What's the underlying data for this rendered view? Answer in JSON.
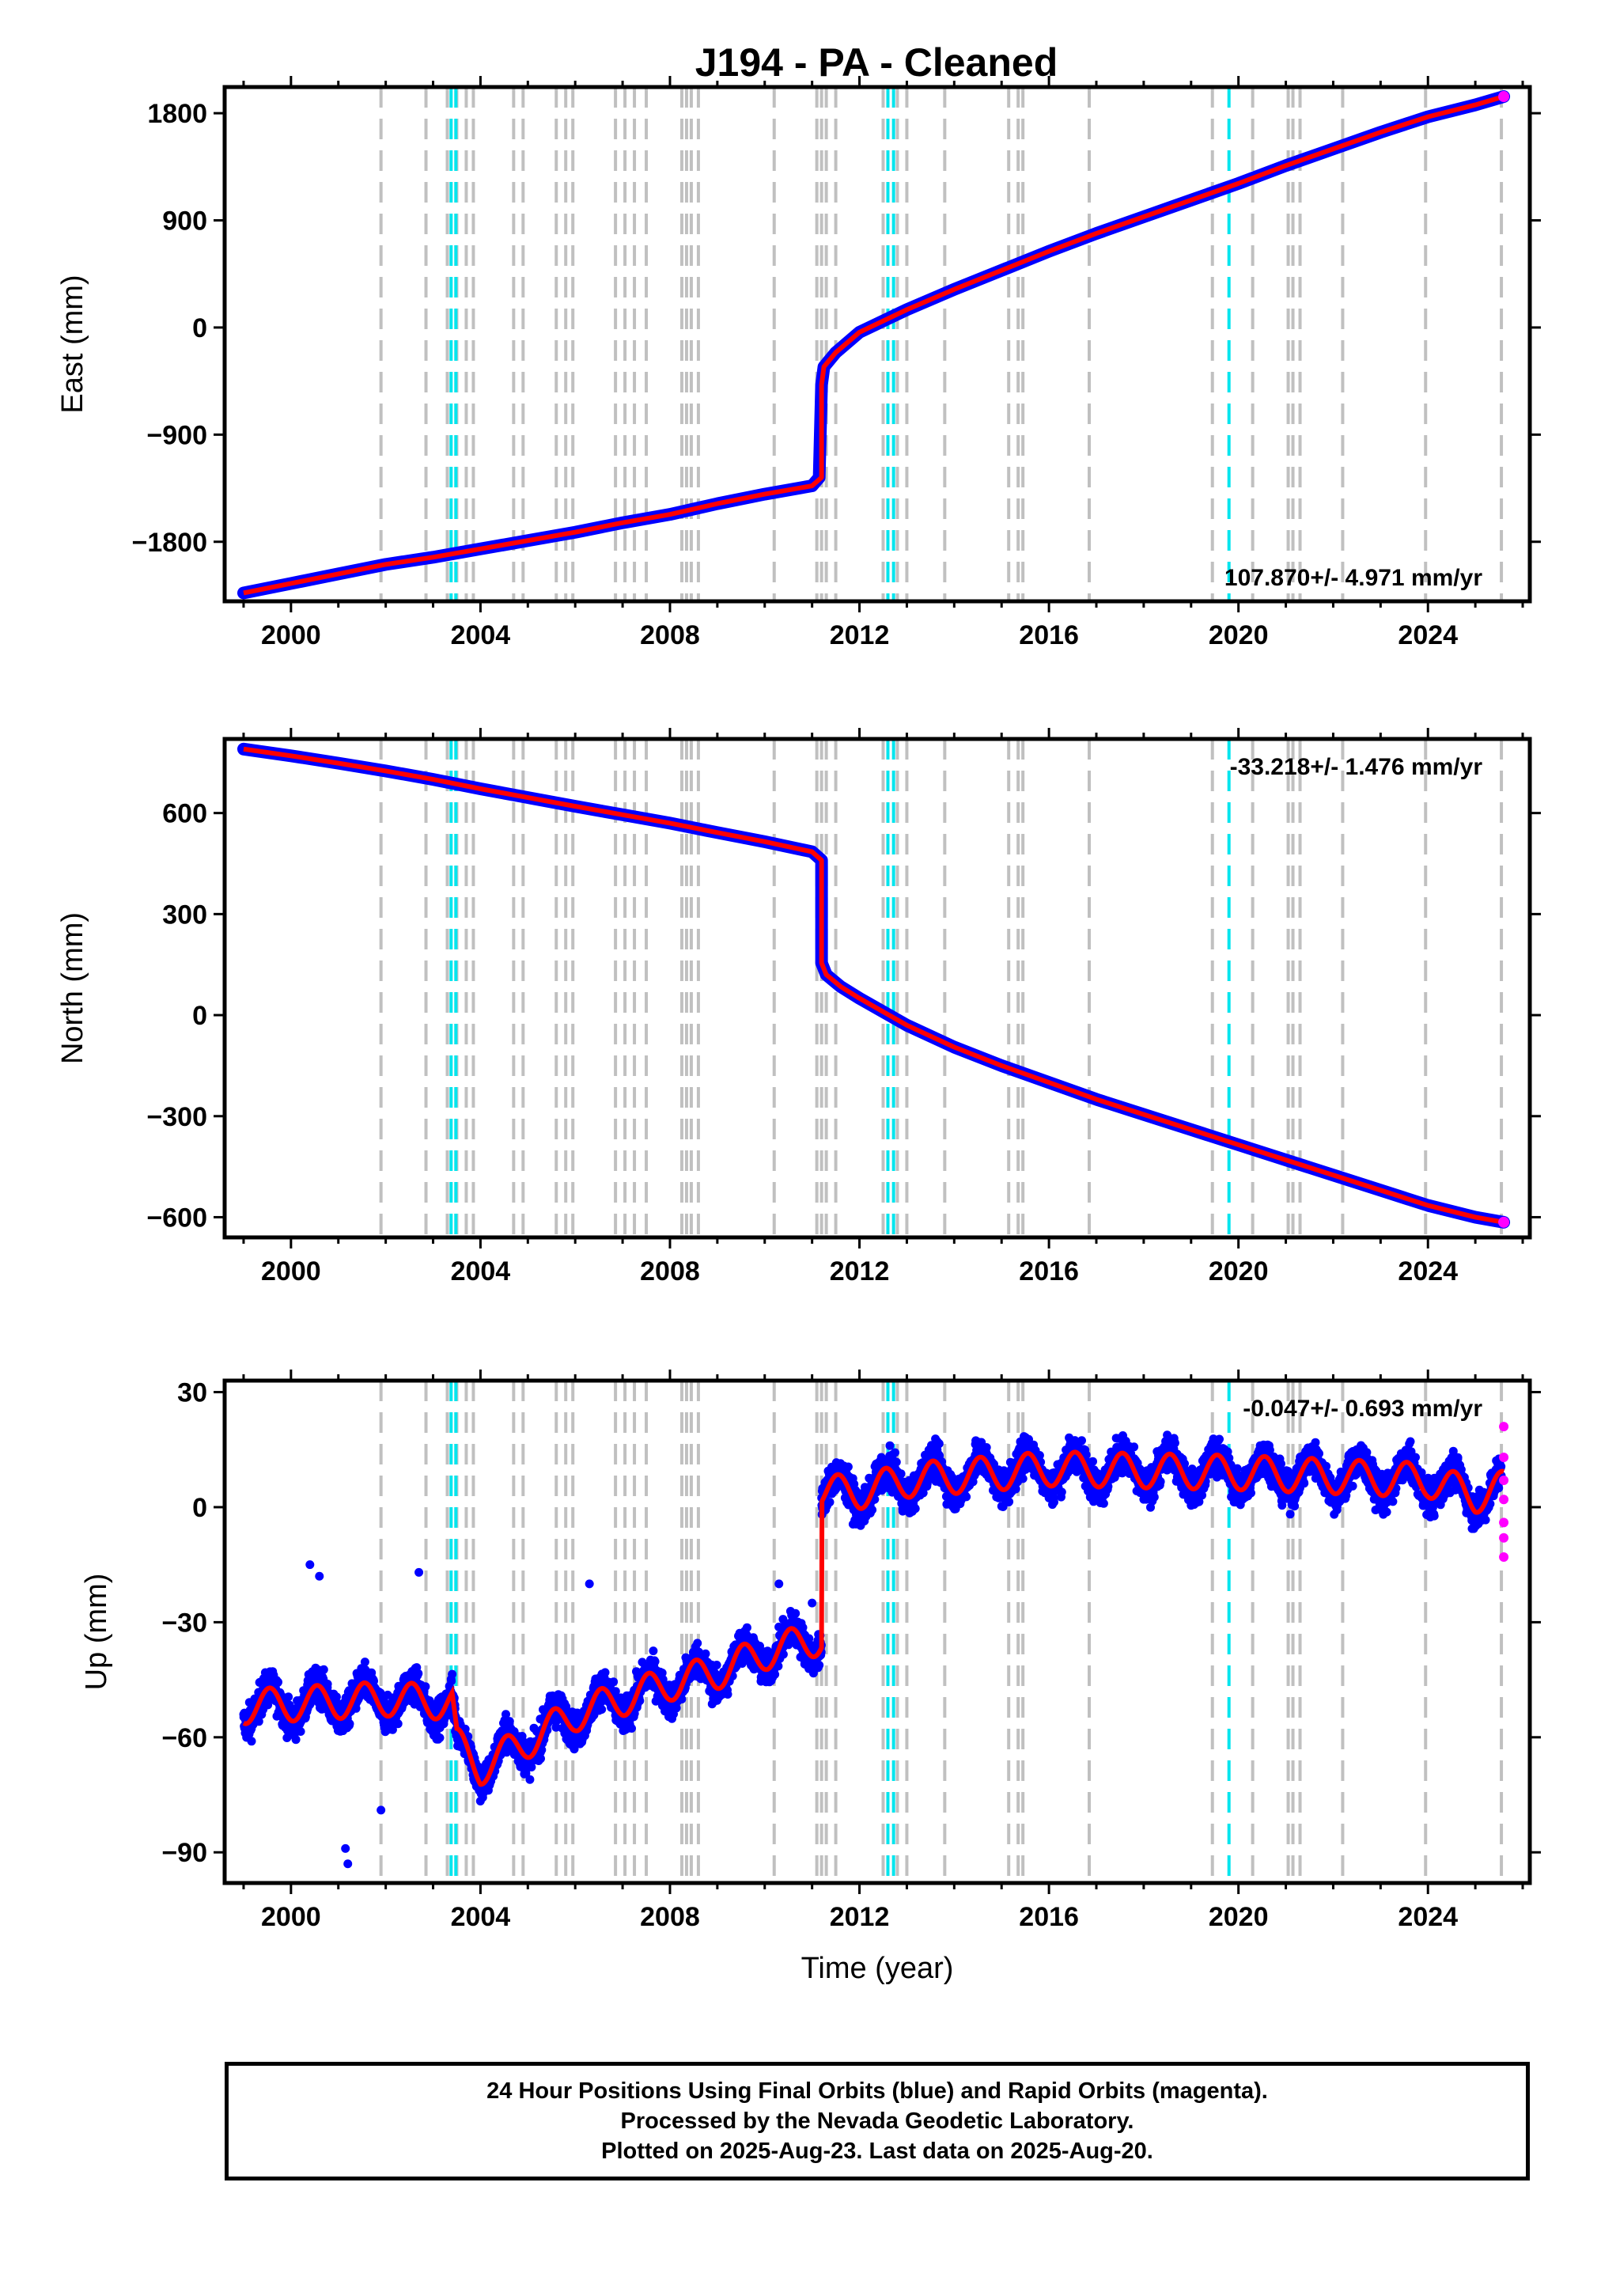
{
  "title": "J194  - PA - Cleaned",
  "footer": {
    "line1": "24 Hour Positions Using Final Orbits (blue) and Rapid Orbits (magenta).",
    "line2": "Processed by the Nevada Geodetic Laboratory.",
    "line3": "Plotted on 2025-Aug-23. Last data on 2025-Aug-20."
  },
  "colors": {
    "final_orbits": "#0000ff",
    "rapid_orbits": "#ff00ff",
    "model_fit": "#ff0000",
    "event_line_gray": "#c0c0c0",
    "event_line_cyan": "#00e5ee"
  },
  "chart_data": [
    {
      "type": "scatter",
      "component": "east",
      "ylabel": "East (mm)",
      "xlabel": "",
      "rate_label": "107.870+/- 4.971 mm/yr",
      "rate_position": "bottom-right",
      "xlim": [
        1998.6,
        2026.15
      ],
      "ylim": [
        -2300,
        2020
      ],
      "xticks": [
        2000,
        2004,
        2008,
        2012,
        2016,
        2020,
        2024
      ],
      "yticks": [
        -1800,
        -900,
        0,
        900,
        1800
      ],
      "ytick_labels": [
        "−1800",
        "−900",
        "0",
        "900",
        "1800"
      ],
      "grid": false,
      "series": [
        {
          "kind": "final",
          "x": [
            1999.0,
            2000.0,
            2001.0,
            2002.0,
            2003.0,
            2004.0,
            2005.0,
            2006.0,
            2007.0,
            2008.0,
            2009.0,
            2010.0,
            2011.0,
            2011.15,
            2011.2,
            2011.25,
            2011.5,
            2012.0,
            2013.0,
            2014.0,
            2015.0,
            2016.0,
            2017.0,
            2018.0,
            2019.0,
            2020.0,
            2021.0,
            2022.0,
            2023.0,
            2024.0,
            2025.0,
            2025.6
          ],
          "values": [
            -2230,
            -2150,
            -2070,
            -1990,
            -1930,
            -1860,
            -1790,
            -1720,
            -1640,
            -1570,
            -1480,
            -1400,
            -1330,
            -1260,
            -480,
            -330,
            -210,
            -40,
            150,
            320,
            480,
            640,
            790,
            930,
            1070,
            1210,
            1360,
            1500,
            1640,
            1770,
            1870,
            1940
          ]
        },
        {
          "kind": "fit",
          "x": [
            1999.0,
            2000.0,
            2001.0,
            2002.0,
            2003.0,
            2004.0,
            2005.0,
            2006.0,
            2007.0,
            2008.0,
            2009.0,
            2010.0,
            2011.0,
            2011.2,
            2011.2,
            2011.25,
            2011.5,
            2012.0,
            2013.0,
            2014.0,
            2015.0,
            2016.0,
            2017.0,
            2018.0,
            2019.0,
            2020.0,
            2021.0,
            2022.0,
            2023.0,
            2024.0,
            2025.0,
            2025.6
          ],
          "values": [
            -2230,
            -2150,
            -2070,
            -1990,
            -1930,
            -1860,
            -1790,
            -1720,
            -1640,
            -1570,
            -1480,
            -1400,
            -1330,
            -1260,
            -480,
            -330,
            -210,
            -40,
            150,
            320,
            480,
            640,
            790,
            930,
            1070,
            1210,
            1360,
            1500,
            1640,
            1770,
            1870,
            1940
          ]
        }
      ]
    },
    {
      "type": "scatter",
      "component": "north",
      "ylabel": "North (mm)",
      "xlabel": "",
      "rate_label": "-33.218+/- 1.476 mm/yr",
      "rate_position": "top-right",
      "xlim": [
        1998.6,
        2026.15
      ],
      "ylim": [
        -660,
        820
      ],
      "xticks": [
        2000,
        2004,
        2008,
        2012,
        2016,
        2020,
        2024
      ],
      "yticks": [
        -600,
        -300,
        0,
        300,
        600
      ],
      "ytick_labels": [
        "−600",
        "−300",
        "0",
        "300",
        "600"
      ],
      "grid": false,
      "series": [
        {
          "kind": "final",
          "x": [
            1999.0,
            2000.0,
            2001.0,
            2002.0,
            2003.0,
            2004.0,
            2005.0,
            2006.0,
            2007.0,
            2008.0,
            2009.0,
            2010.0,
            2011.0,
            2011.2,
            2011.2,
            2011.3,
            2011.6,
            2012.0,
            2013.0,
            2014.0,
            2015.0,
            2016.0,
            2017.0,
            2018.0,
            2019.0,
            2020.0,
            2021.0,
            2022.0,
            2023.0,
            2024.0,
            2025.0,
            2025.6
          ],
          "values": [
            790,
            770,
            748,
            725,
            700,
            672,
            646,
            620,
            595,
            570,
            542,
            515,
            485,
            460,
            155,
            120,
            85,
            50,
            -30,
            -95,
            -150,
            -200,
            -250,
            -295,
            -340,
            -385,
            -430,
            -475,
            -520,
            -565,
            -600,
            -615
          ]
        },
        {
          "kind": "fit",
          "x": [
            1999.0,
            2000.0,
            2001.0,
            2002.0,
            2003.0,
            2004.0,
            2005.0,
            2006.0,
            2007.0,
            2008.0,
            2009.0,
            2010.0,
            2011.0,
            2011.2,
            2011.2,
            2011.3,
            2011.6,
            2012.0,
            2013.0,
            2014.0,
            2015.0,
            2016.0,
            2017.0,
            2018.0,
            2019.0,
            2020.0,
            2021.0,
            2022.0,
            2023.0,
            2024.0,
            2025.0,
            2025.6
          ],
          "values": [
            790,
            770,
            748,
            725,
            700,
            672,
            646,
            620,
            595,
            570,
            542,
            515,
            485,
            460,
            155,
            120,
            85,
            50,
            -30,
            -95,
            -150,
            -200,
            -250,
            -295,
            -340,
            -385,
            -430,
            -475,
            -520,
            -565,
            -600,
            -615
          ]
        }
      ]
    },
    {
      "type": "scatter",
      "component": "up",
      "ylabel": "Up (mm)",
      "xlabel": "Time (year)",
      "rate_label": "-0.047+/- 0.693 mm/yr",
      "rate_position": "top-right",
      "xlim": [
        1998.6,
        2026.15
      ],
      "ylim": [
        -98,
        33
      ],
      "xticks": [
        2000,
        2004,
        2008,
        2012,
        2016,
        2020,
        2024
      ],
      "yticks": [
        -90,
        -60,
        -30,
        0,
        30
      ],
      "ytick_labels": [
        "−90",
        "−60",
        "−30",
        "0",
        "30"
      ],
      "grid": false,
      "seasonal_amplitude_mm": 4.5,
      "scatter_spread_mm": 7,
      "series": [
        {
          "kind": "trend",
          "x": [
            1999.0,
            2002.0,
            2003.4,
            2003.5,
            2004.0,
            2005.0,
            2006.0,
            2007.0,
            2008.0,
            2009.0,
            2010.0,
            2011.2,
            2011.2,
            2012.0,
            2013.0,
            2016.0,
            2020.0,
            2024.0,
            2025.0,
            2025.6
          ],
          "values": [
            -52,
            -50,
            -51,
            -62,
            -68,
            -61,
            -54,
            -50,
            -46,
            -43,
            -38,
            -34,
            4,
            4,
            7,
            10,
            9,
            7,
            3,
            5
          ]
        },
        {
          "kind": "rapid",
          "x": [
            2025.6,
            2025.6,
            2025.6,
            2025.6,
            2025.6,
            2025.6,
            2025.6
          ],
          "values": [
            21,
            13,
            7,
            2,
            -4,
            -8,
            -13
          ]
        }
      ]
    }
  ],
  "event_lines": {
    "gray": [
      2001.9,
      2002.85,
      2003.3,
      2003.5,
      2003.7,
      2003.85,
      2004.7,
      2004.9,
      2005.6,
      2005.8,
      2005.95,
      2006.85,
      2007.05,
      2007.25,
      2007.5,
      2008.25,
      2008.35,
      2008.45,
      2008.6,
      2010.2,
      2011.1,
      2011.2,
      2011.3,
      2011.5,
      2012.5,
      2012.8,
      2013.0,
      2013.8,
      2015.15,
      2015.35,
      2015.45,
      2016.85,
      2019.45,
      2020.3,
      2021.05,
      2021.15,
      2021.3,
      2022.2,
      2023.95,
      2025.55
    ],
    "cyan": [
      2003.38,
      2003.48,
      2012.6,
      2012.72,
      2019.8
    ]
  }
}
